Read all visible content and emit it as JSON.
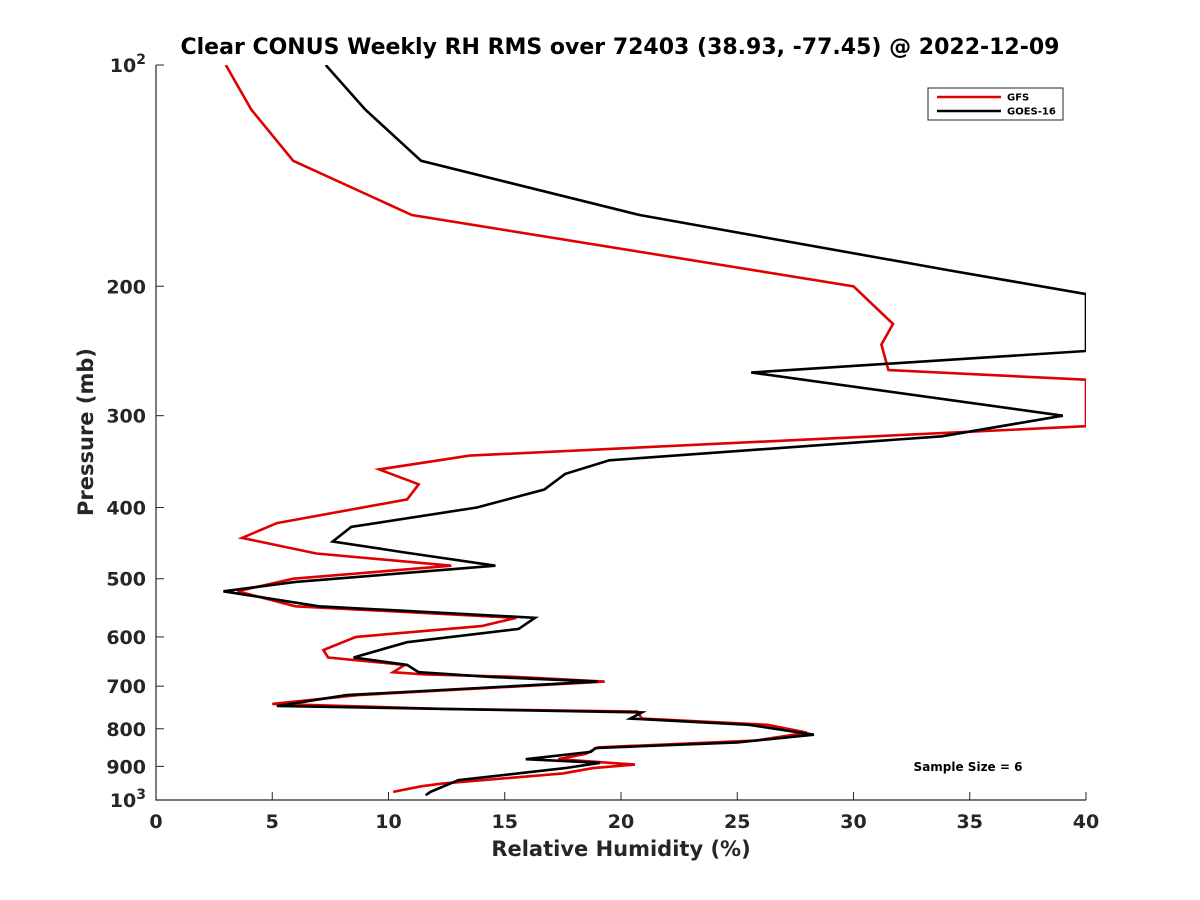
{
  "chart_data": {
    "type": "line",
    "title": "Clear CONUS Weekly RH RMS over 72403 (38.93, -77.45) @ 2022-12-09",
    "xlabel": "Relative Humidity (%)",
    "ylabel": "Pressure (mb)",
    "xlim": [
      0,
      40
    ],
    "ylim": [
      100,
      1000
    ],
    "y_scale": "log",
    "y_reversed": true,
    "grid": false,
    "legend_position": "top-right",
    "x_ticks": [
      0,
      5,
      10,
      15,
      20,
      25,
      30,
      35,
      40
    ],
    "x_tick_labels": [
      "0",
      "5",
      "10",
      "15",
      "20",
      "25",
      "30",
      "35",
      "40"
    ],
    "y_ticks": [
      {
        "value": 100,
        "base": "10",
        "exp": "2"
      },
      {
        "value": 200,
        "label": "200"
      },
      {
        "value": 300,
        "label": "300"
      },
      {
        "value": 400,
        "label": "400"
      },
      {
        "value": 500,
        "label": "500"
      },
      {
        "value": 600,
        "label": "600"
      },
      {
        "value": 700,
        "label": "700"
      },
      {
        "value": 800,
        "label": "800"
      },
      {
        "value": 900,
        "label": "900"
      },
      {
        "value": 1000,
        "base": "10",
        "exp": "3"
      }
    ],
    "series": [
      {
        "name": "GFS",
        "color": "#e00000",
        "points": [
          [
            3.0,
            100
          ],
          [
            4.1,
            115
          ],
          [
            5.9,
            135
          ],
          [
            11.0,
            160
          ],
          [
            30.0,
            200
          ],
          [
            31.7,
            225
          ],
          [
            31.2,
            240
          ],
          [
            31.5,
            260
          ],
          [
            40.0,
            268
          ],
          [
            40.0,
            310
          ],
          [
            13.5,
            340
          ],
          [
            9.6,
            355
          ],
          [
            11.3,
            372
          ],
          [
            10.8,
            390
          ],
          [
            5.2,
            420
          ],
          [
            3.7,
            440
          ],
          [
            6.9,
            462
          ],
          [
            12.7,
            480
          ],
          [
            5.9,
            500
          ],
          [
            3.5,
            520
          ],
          [
            6.0,
            545
          ],
          [
            15.5,
            565
          ],
          [
            14.0,
            580
          ],
          [
            8.6,
            600
          ],
          [
            7.2,
            625
          ],
          [
            7.4,
            640
          ],
          [
            10.7,
            655
          ],
          [
            10.2,
            670
          ],
          [
            11.6,
            675
          ],
          [
            15.5,
            680
          ],
          [
            19.3,
            690
          ],
          [
            8.7,
            720
          ],
          [
            5.0,
            740
          ],
          [
            12.5,
            752
          ],
          [
            20.7,
            758
          ],
          [
            20.9,
            775
          ],
          [
            26.3,
            790
          ],
          [
            28.0,
            810
          ],
          [
            25.8,
            830
          ],
          [
            19.0,
            848
          ],
          [
            18.5,
            865
          ],
          [
            17.3,
            880
          ],
          [
            20.6,
            895
          ],
          [
            18.8,
            905
          ],
          [
            17.5,
            920
          ],
          [
            12.3,
            950
          ],
          [
            11.4,
            958
          ],
          [
            10.2,
            975
          ]
        ]
      },
      {
        "name": "GOES-16",
        "color": "#000000",
        "points": [
          [
            7.3,
            100
          ],
          [
            9.0,
            115
          ],
          [
            11.4,
            135
          ],
          [
            20.8,
            160
          ],
          [
            34.0,
            190
          ],
          [
            40.0,
            205
          ],
          [
            40.0,
            245
          ],
          [
            25.6,
            262
          ],
          [
            39.0,
            300
          ],
          [
            33.8,
            320
          ],
          [
            19.5,
            345
          ],
          [
            17.6,
            360
          ],
          [
            16.7,
            378
          ],
          [
            13.8,
            400
          ],
          [
            8.4,
            425
          ],
          [
            7.6,
            445
          ],
          [
            10.6,
            460
          ],
          [
            14.6,
            480
          ],
          [
            6.0,
            505
          ],
          [
            2.9,
            520
          ],
          [
            7.0,
            545
          ],
          [
            16.3,
            565
          ],
          [
            15.6,
            585
          ],
          [
            10.8,
            610
          ],
          [
            8.5,
            640
          ],
          [
            10.8,
            655
          ],
          [
            11.3,
            670
          ],
          [
            14.4,
            680
          ],
          [
            19.0,
            690
          ],
          [
            8.2,
            720
          ],
          [
            5.2,
            745
          ],
          [
            20.9,
            760
          ],
          [
            20.4,
            775
          ],
          [
            25.5,
            790
          ],
          [
            28.3,
            815
          ],
          [
            25.0,
            835
          ],
          [
            18.9,
            850
          ],
          [
            18.7,
            860
          ],
          [
            15.9,
            880
          ],
          [
            19.1,
            890
          ],
          [
            17.6,
            905
          ],
          [
            13.0,
            940
          ],
          [
            11.8,
            975
          ],
          [
            11.6,
            985
          ]
        ]
      }
    ],
    "annotations": [
      {
        "text": "Sample Size = 6"
      }
    ]
  }
}
